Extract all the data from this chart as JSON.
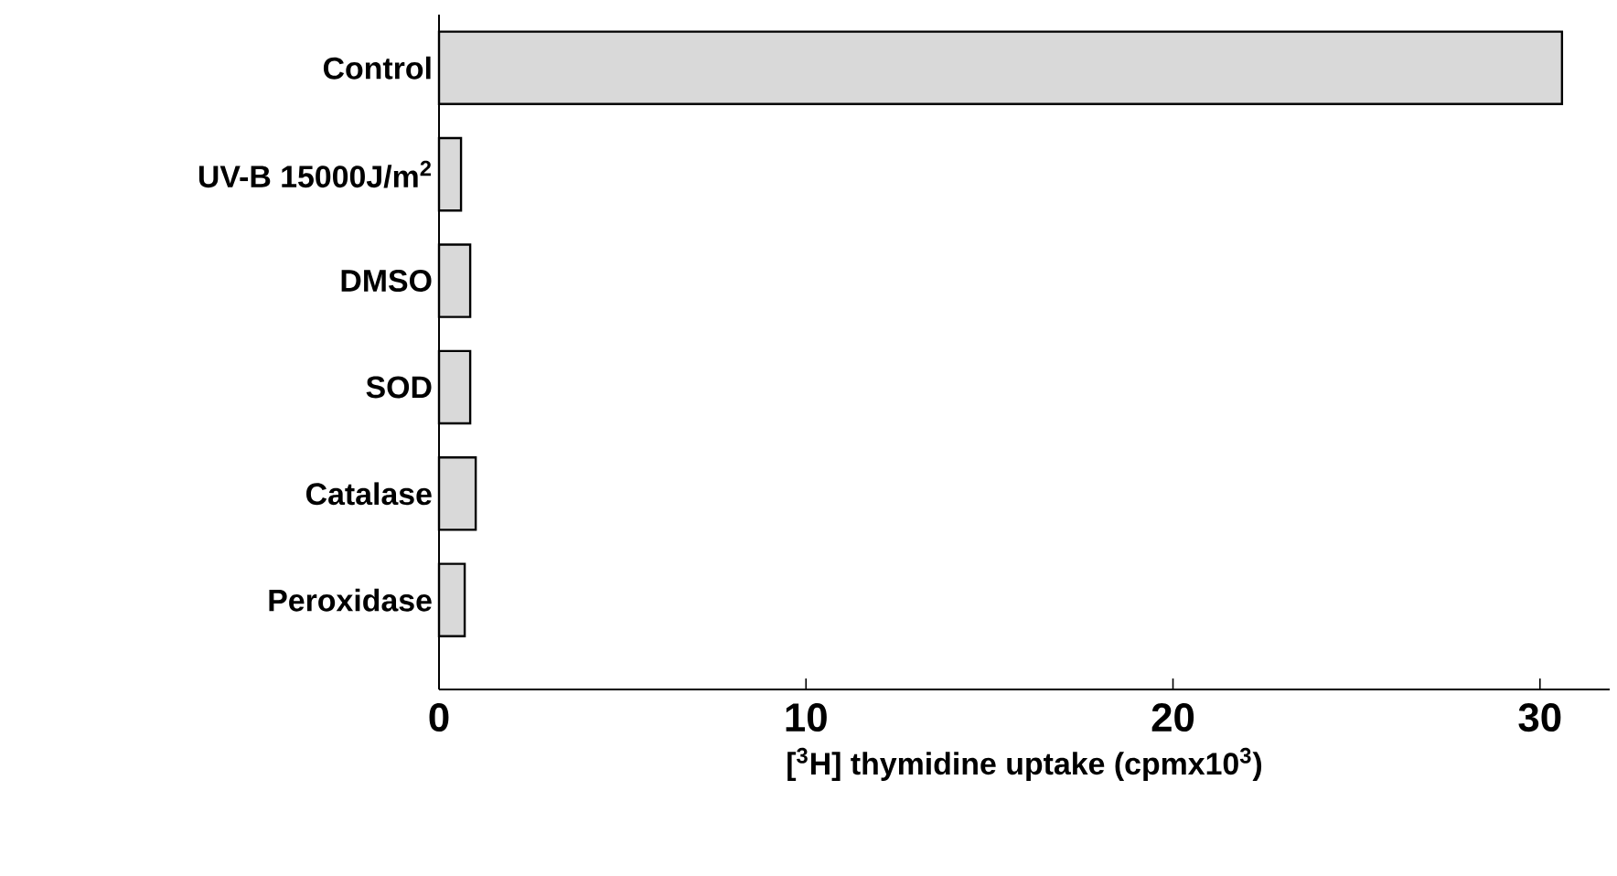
{
  "chart_data": {
    "type": "bar",
    "orientation": "horizontal",
    "categories": [
      "Control",
      "UV-B  15000J/m$^{2}$",
      "DMSO",
      "SOD",
      "Catalase",
      "Peroxidase"
    ],
    "values": [
      30.6,
      0.6,
      0.85,
      0.85,
      1.0,
      0.7
    ],
    "color": "#d9d9d9",
    "xlabel": "[$^{3}$H] thymidine uptake (cpmx10$^{3}$)",
    "xlim": [
      0,
      31.9
    ],
    "xticks": [
      0,
      10,
      20,
      30
    ],
    "grid": false
  }
}
